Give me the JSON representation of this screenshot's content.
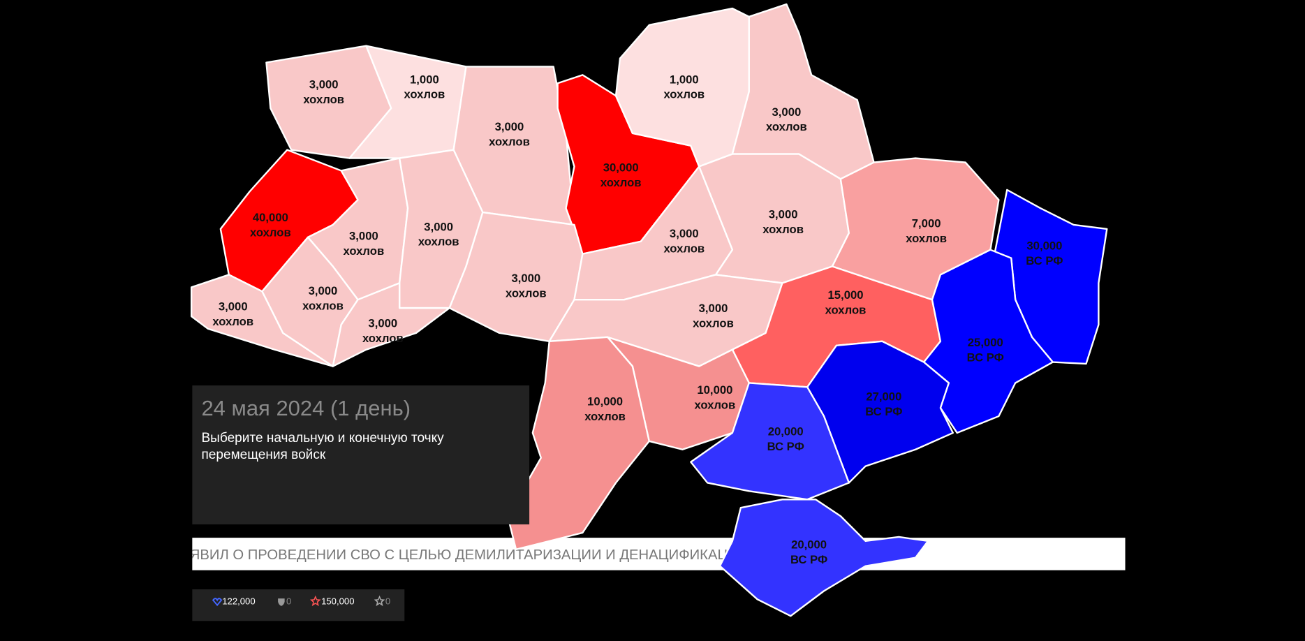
{
  "regions": [
    {
      "amount": "3,000",
      "unit": "хохлов",
      "color": "#f9c8c8"
    },
    {
      "amount": "1,000",
      "unit": "хохлов",
      "color": "#fde0e0"
    },
    {
      "amount": "3,000",
      "unit": "хохлов",
      "color": "#f9c8c8"
    },
    {
      "amount": "30,000",
      "unit": "хохлов",
      "color": "#ff0000"
    },
    {
      "amount": "1,000",
      "unit": "хохлов",
      "color": "#fde0e0"
    },
    {
      "amount": "3,000",
      "unit": "хохлов",
      "color": "#f9c8c8"
    },
    {
      "amount": "40,000",
      "unit": "хохлов",
      "color": "#ff0000"
    },
    {
      "amount": "3,000",
      "unit": "хохлов",
      "color": "#f9c8c8"
    },
    {
      "amount": "3,000",
      "unit": "хохлов",
      "color": "#f9c8c8"
    },
    {
      "amount": "3,000",
      "unit": "хохлов",
      "color": "#f9c8c8"
    },
    {
      "amount": "3,000",
      "unit": "хохлов",
      "color": "#f9c8c8"
    },
    {
      "amount": "3,000",
      "unit": "хохлов",
      "color": "#f9c8c8"
    },
    {
      "amount": "7,000",
      "unit": "хохлов",
      "color": "#f9a0a0"
    },
    {
      "amount": "3,000",
      "unit": "хохлов",
      "color": "#f9c8c8"
    },
    {
      "amount": "3,000",
      "unit": "хохлов",
      "color": "#f9c8c8"
    },
    {
      "amount": "3,000",
      "unit": "хохлов",
      "color": "#f9c8c8"
    },
    {
      "amount": "3,000",
      "unit": "хохлов",
      "color": "#f9c8c8"
    },
    {
      "amount": "15,000",
      "unit": "хохлов",
      "color": "#ff6060"
    },
    {
      "amount": "10,000",
      "unit": "хохлов",
      "color": "#f59090"
    },
    {
      "amount": "10,000",
      "unit": "хохлов",
      "color": "#f59090"
    },
    {
      "amount": "30,000",
      "unit": "ВС РФ",
      "color": "#0000ff"
    },
    {
      "amount": "25,000",
      "unit": "ВС РФ",
      "color": "#0000ff"
    },
    {
      "amount": "27,000",
      "unit": "ВС РФ",
      "color": "#0000ee"
    },
    {
      "amount": "20,000",
      "unit": "ВС РФ",
      "color": "#3333ff"
    },
    {
      "amount": "20,000",
      "unit": "ВС РФ",
      "color": "#3333ff"
    }
  ],
  "info": {
    "date": "24 мая 2024 (1 день)",
    "line1": "Выберите начальную и конечную точку",
    "line2": "перемещения войск"
  },
  "ticker": "ЯВИЛ О ПРОВЕДЕНИИ СВО С ЦЕЛЬЮ ДЕМИЛИТАРИЗАЦИИ И ДЕНАЦИФИКАЦИ",
  "stats": [
    "122,000",
    "0",
    "150,000",
    "0"
  ]
}
